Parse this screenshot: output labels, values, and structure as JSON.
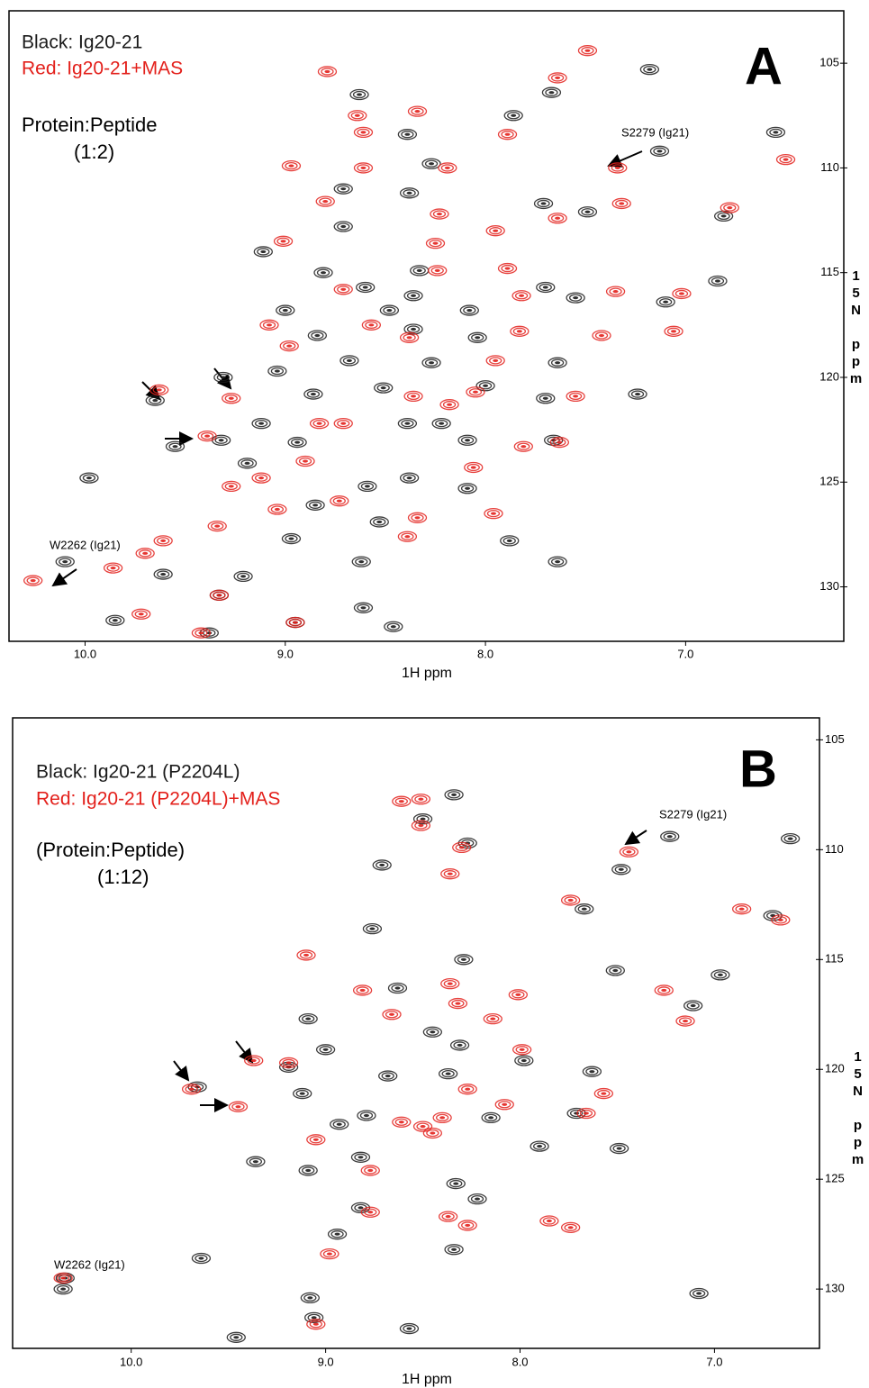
{
  "chart_data": [
    {
      "type": "scatter",
      "title": "A",
      "annotations": [
        "Protein:Peptide",
        "(1:2)",
        "S2279 (Ig21)",
        "W2262 (Ig21)"
      ],
      "x_label": "1H ppm",
      "y_label": "15N ppm",
      "xlim": [
        10.38,
        6.21
      ],
      "ylim": [
        132.6,
        102.5
      ],
      "xticks": [
        {
          "value": 10,
          "label": "10.0"
        },
        {
          "value": 9,
          "label": "9.0"
        },
        {
          "value": 8,
          "label": "8.0"
        },
        {
          "value": 7,
          "label": "7.0"
        }
      ],
      "yticks": [
        105,
        110,
        115,
        120,
        125,
        130
      ],
      "series": [
        {
          "name": "Black: Ig20-21",
          "color": "#1a1a1a",
          "x": [
            7.18,
            7.67,
            8.63,
            7.86,
            6.55,
            8.39,
            7.13,
            8.27,
            8.71,
            8.38,
            7.71,
            7.49,
            6.81,
            8.71,
            9.11,
            8.81,
            8.33,
            7.7,
            8.36,
            8.6,
            6.84,
            7.1,
            9.0,
            8.36,
            8.08,
            7.55,
            8.04,
            8.68,
            8.27,
            7.64,
            9.04,
            8.0,
            9.31,
            7.24,
            9.65,
            8.86,
            8.51,
            7.7,
            9.32,
            9.12,
            8.39,
            8.22,
            8.09,
            7.66,
            9.55,
            8.94,
            9.19,
            8.38,
            8.59,
            8.09,
            9.98,
            8.85,
            8.53,
            8.97,
            7.88,
            10.1,
            9.61,
            9.21,
            8.62,
            9.33,
            8.61,
            9.85,
            8.95,
            8.46,
            9.38,
            7.64,
            8.48,
            8.84
          ],
          "values": [
            105.3,
            106.4,
            106.5,
            107.5,
            108.3,
            108.4,
            109.2,
            109.8,
            111.0,
            111.2,
            111.7,
            112.1,
            112.3,
            112.8,
            114.0,
            115.0,
            114.9,
            115.7,
            116.1,
            115.7,
            115.4,
            116.4,
            116.8,
            117.7,
            116.8,
            116.2,
            118.1,
            119.2,
            119.3,
            119.3,
            119.7,
            120.4,
            120.0,
            120.8,
            121.1,
            120.8,
            120.5,
            121.0,
            123.0,
            122.2,
            122.2,
            122.2,
            123.0,
            123.0,
            123.3,
            123.1,
            124.1,
            124.8,
            125.2,
            125.3,
            124.8,
            126.1,
            126.9,
            127.7,
            127.8,
            128.8,
            129.4,
            129.5,
            128.8,
            130.4,
            131.0,
            131.6,
            131.7,
            131.9,
            132.2,
            128.8,
            116.8,
            118.0
          ]
        },
        {
          "name": "Red: Ig20-21+MAS",
          "color": "#e3201b",
          "x": [
            7.49,
            8.79,
            7.64,
            8.64,
            7.89,
            8.34,
            7.34,
            6.5,
            8.61,
            8.97,
            8.61,
            8.19,
            7.95,
            8.23,
            8.8,
            9.01,
            7.64,
            7.32,
            6.78,
            8.25,
            7.89,
            7.35,
            7.02,
            7.82,
            8.24,
            8.71,
            7.06,
            7.42,
            7.83,
            8.38,
            9.08,
            8.98,
            7.95,
            8.57,
            9.27,
            9.63,
            9.39,
            8.83,
            8.18,
            8.05,
            7.81,
            7.55,
            7.63,
            8.36,
            8.71,
            8.9,
            9.27,
            8.73,
            8.34,
            7.96,
            9.04,
            8.39,
            9.61,
            9.7,
            10.26,
            9.86,
            9.33,
            9.34,
            9.72,
            9.42,
            8.95,
            8.06,
            9.12
          ],
          "values": [
            104.4,
            105.4,
            105.7,
            107.5,
            108.4,
            107.3,
            110.0,
            109.6,
            108.3,
            109.9,
            110.0,
            110.0,
            113.0,
            112.2,
            111.6,
            113.5,
            112.4,
            111.7,
            111.9,
            113.6,
            114.8,
            115.9,
            116.0,
            116.1,
            114.9,
            115.8,
            117.8,
            118.0,
            117.8,
            118.1,
            117.5,
            118.5,
            119.2,
            117.5,
            121.0,
            120.6,
            122.8,
            122.2,
            121.3,
            120.7,
            123.3,
            120.9,
            123.1,
            120.9,
            122.2,
            124.0,
            125.2,
            125.9,
            126.7,
            126.5,
            126.3,
            127.6,
            127.8,
            128.4,
            129.7,
            129.1,
            130.4,
            127.1,
            131.3,
            132.2,
            131.7,
            124.3,
            124.8
          ]
        }
      ]
    },
    {
      "type": "scatter",
      "title": "B",
      "annotations": [
        "(Protein:Peptide)",
        "(1:12)",
        "S2279 (Ig21)",
        "W2262 (Ig21)"
      ],
      "x_label": "1H ppm",
      "y_label": "15N ppm",
      "xlim": [
        10.61,
        6.46
      ],
      "ylim": [
        132.7,
        104.0
      ],
      "xticks": [
        {
          "value": 10,
          "label": "10.0"
        },
        {
          "value": 9,
          "label": "9.0"
        },
        {
          "value": 8,
          "label": "8.0"
        },
        {
          "value": 7,
          "label": "7.0"
        }
      ],
      "yticks": [
        105,
        110,
        115,
        120,
        125,
        130
      ],
      "series": [
        {
          "name": "Black: Ig20-21 (P2204L)",
          "color": "#1a1a1a",
          "x": [
            8.34,
            8.5,
            8.27,
            7.23,
            6.61,
            8.71,
            7.48,
            7.67,
            6.7,
            8.76,
            8.29,
            8.63,
            7.51,
            6.97,
            7.11,
            9.09,
            8.45,
            8.31,
            8.37,
            7.98,
            7.63,
            8.68,
            9.19,
            9.0,
            9.66,
            8.15,
            7.71,
            8.79,
            9.12,
            7.9,
            7.49,
            8.93,
            9.36,
            9.09,
            8.82,
            8.33,
            8.22,
            8.82,
            8.94,
            8.34,
            9.64,
            10.35,
            10.34,
            9.08,
            9.46,
            8.57,
            9.06,
            7.08
          ],
          "values": [
            107.5,
            108.6,
            109.7,
            109.4,
            109.5,
            110.7,
            110.9,
            112.7,
            113.0,
            113.6,
            115.0,
            116.3,
            115.5,
            115.7,
            117.1,
            117.7,
            118.3,
            118.9,
            120.2,
            119.6,
            120.1,
            120.3,
            119.9,
            119.1,
            120.8,
            122.2,
            122.0,
            122.1,
            121.1,
            123.5,
            123.6,
            122.5,
            124.2,
            124.6,
            124.0,
            125.2,
            125.9,
            126.3,
            127.5,
            128.2,
            128.6,
            130.0,
            129.5,
            130.4,
            132.2,
            131.8,
            131.3,
            130.2
          ]
        },
        {
          "name": "Red: Ig20-21 (P2204L)+MAS",
          "color": "#e3201b",
          "x": [
            8.51,
            8.51,
            8.3,
            7.44,
            8.61,
            8.36,
            7.74,
            6.86,
            6.66,
            9.1,
            8.81,
            8.66,
            8.36,
            8.32,
            7.26,
            7.15,
            8.01,
            8.14,
            9.37,
            9.69,
            9.45,
            9.19,
            8.27,
            7.99,
            7.57,
            8.4,
            8.61,
            8.08,
            7.66,
            8.77,
            9.05,
            8.5,
            8.37,
            8.27,
            8.77,
            7.74,
            10.35,
            9.05,
            8.98,
            8.45,
            7.85
          ],
          "values": [
            107.7,
            108.9,
            109.9,
            110.1,
            107.8,
            111.1,
            112.3,
            112.7,
            113.2,
            114.8,
            116.4,
            117.5,
            116.1,
            117.0,
            116.4,
            117.8,
            116.6,
            117.7,
            119.6,
            120.9,
            121.7,
            119.7,
            120.9,
            119.1,
            121.1,
            122.2,
            122.4,
            121.6,
            122.0,
            124.6,
            123.2,
            122.6,
            126.7,
            127.1,
            126.5,
            127.2,
            129.5,
            131.6,
            128.4,
            122.9,
            126.9
          ]
        }
      ]
    }
  ]
}
